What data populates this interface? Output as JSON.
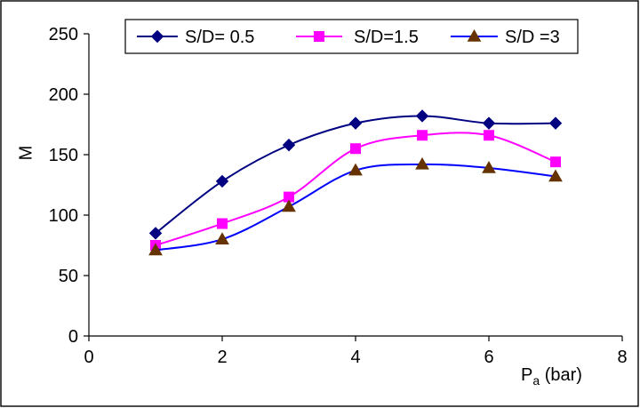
{
  "chart_data": {
    "type": "line",
    "title": "",
    "xlabel_main": "P",
    "xlabel_sub": "a",
    "xlabel_unit": " (bar)",
    "ylabel": "M",
    "xlim": [
      0,
      8
    ],
    "ylim": [
      0,
      250
    ],
    "xticks": [
      0,
      2,
      4,
      6,
      8
    ],
    "yticks": [
      0,
      50,
      100,
      150,
      200,
      250
    ],
    "grid": false,
    "legend_position": "top",
    "x": [
      1,
      2,
      3,
      4,
      5,
      6,
      7
    ],
    "series": [
      {
        "name": "S/D= 0.5",
        "values": [
          85,
          128,
          158,
          176,
          182,
          176,
          176
        ],
        "color": "#000080",
        "marker": "diamond"
      },
      {
        "name": "S/D=1.5",
        "values": [
          75,
          93,
          115,
          155,
          166,
          166,
          144
        ],
        "color": "#FF00FF",
        "marker": "square"
      },
      {
        "name": "S/D =3",
        "values": [
          71,
          80,
          107,
          137,
          142,
          139,
          132
        ],
        "color": "#0000FF",
        "marker_color": "#663300",
        "marker": "triangle"
      }
    ]
  }
}
